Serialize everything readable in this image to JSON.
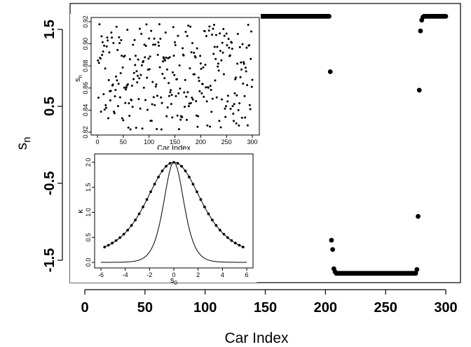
{
  "chart_data": [
    {
      "type": "scatter",
      "xlabel": "Car Index",
      "ylabel": "s",
      "ylabel_subscript": "n",
      "xlim": [
        0,
        300
      ],
      "ylim": [
        -1.8,
        1.8
      ],
      "xticks": [
        0,
        50,
        100,
        150,
        200,
        250,
        300
      ],
      "yticks": [
        -1.5,
        -0.5,
        0.5,
        1.5
      ],
      "grid": false,
      "segments": [
        {
          "from": 1,
          "to": 203,
          "value": 1.67
        },
        {
          "from": 209,
          "to": 275,
          "value": -1.67
        },
        {
          "from": 282,
          "to": 300,
          "value": 1.67
        }
      ],
      "points": [
        [
          204,
          0.95
        ],
        [
          205,
          -1.24
        ],
        [
          206,
          -1.36
        ],
        [
          207,
          -1.61
        ],
        [
          208,
          -1.65
        ],
        [
          276,
          -1.62
        ],
        [
          277,
          -0.93
        ],
        [
          278,
          0.71
        ],
        [
          279,
          1.48
        ],
        [
          280,
          1.62
        ],
        [
          281,
          1.66
        ]
      ]
    },
    {
      "type": "scatter",
      "xlabel": "Car Index",
      "ylabel": "s",
      "ylabel_subscript": "n",
      "xlim": [
        0,
        300
      ],
      "ylim": [
        0.82,
        0.92
      ],
      "xticks": [
        0,
        50,
        100,
        150,
        200,
        250,
        300
      ],
      "yticks": [
        0.82,
        0.84,
        0.86,
        0.88,
        0.9,
        0.92
      ],
      "n_points": 300,
      "value_range": [
        0.82,
        0.92
      ]
    },
    {
      "type": "line",
      "xlabel": "s",
      "xlabel_subscript": "0",
      "ylabel": "κ",
      "xlim": [
        -6,
        6
      ],
      "ylim": [
        -0.05,
        2.05
      ],
      "xticks": [
        -6,
        -4,
        -2,
        0,
        2,
        4,
        6
      ],
      "yticks": [
        0.0,
        0.5,
        1.0,
        1.5,
        2.0
      ],
      "series": [
        {
          "x_range": [
            -5.7,
            5.7
          ],
          "markers": true
        },
        {
          "x_range": [
            -6,
            6
          ],
          "markers": false
        }
      ]
    }
  ]
}
